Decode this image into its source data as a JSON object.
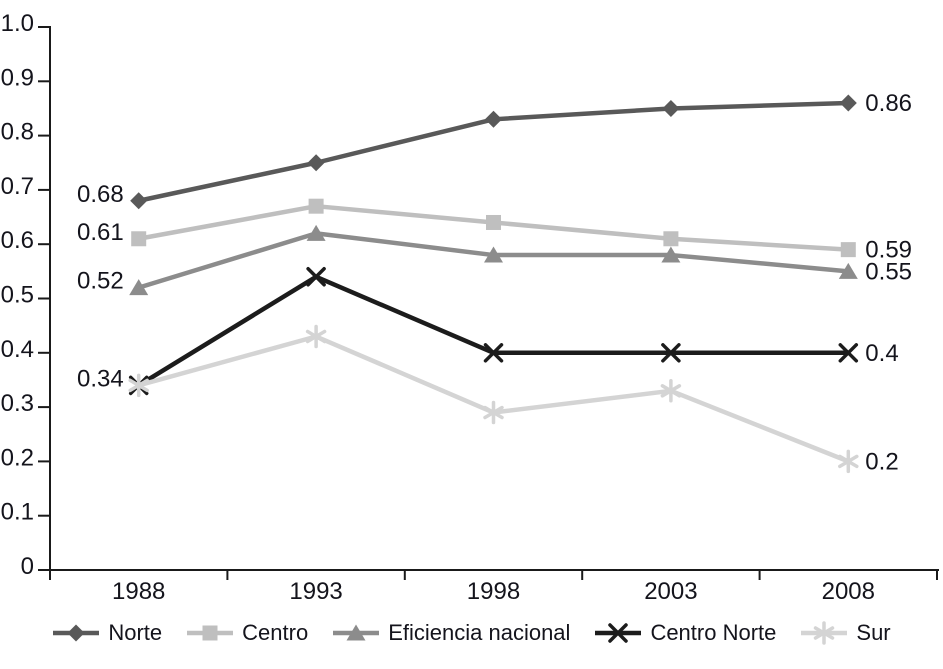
{
  "chart_data": {
    "type": "line",
    "title": "",
    "xlabel": "",
    "ylabel": "",
    "categories": [
      "1988",
      "1993",
      "1998",
      "2003",
      "2008"
    ],
    "ylim": [
      0,
      1.0
    ],
    "ytick_step": 0.1,
    "ytick_labels": [
      "0",
      "0.1",
      "0.2",
      "0.3",
      "0.4",
      "0.5",
      "0.6",
      "0.7",
      "0.8",
      "0.9",
      "1.0"
    ],
    "grid": false,
    "legend_position": "bottom",
    "series": [
      {
        "name": "Norte",
        "marker": "diamond",
        "color": "#595959",
        "values": [
          0.68,
          0.75,
          0.83,
          0.85,
          0.86
        ],
        "start_label": "0.68",
        "end_label": "0.86"
      },
      {
        "name": "Centro",
        "marker": "square",
        "color": "#bfbfbf",
        "values": [
          0.61,
          0.67,
          0.64,
          0.61,
          0.59
        ],
        "start_label": "0.61",
        "end_label": "0.59"
      },
      {
        "name": "Eficiencia nacional",
        "marker": "triangle",
        "color": "#8c8c8c",
        "values": [
          0.52,
          0.62,
          0.58,
          0.58,
          0.55
        ],
        "start_label": "0.52",
        "end_label": "0.55"
      },
      {
        "name": "Centro Norte",
        "marker": "x",
        "color": "#1c1c1c",
        "values": [
          0.34,
          0.54,
          0.4,
          0.4,
          0.4
        ],
        "start_label": "",
        "end_label": "0.4"
      },
      {
        "name": "Sur",
        "marker": "asterisk",
        "color": "#d4d4d4",
        "values": [
          0.34,
          0.43,
          0.29,
          0.33,
          0.2
        ],
        "start_label": "0.34",
        "end_label": "0.2"
      }
    ]
  },
  "colors": {
    "axis": "#1a1a1a",
    "text": "#14141c"
  }
}
